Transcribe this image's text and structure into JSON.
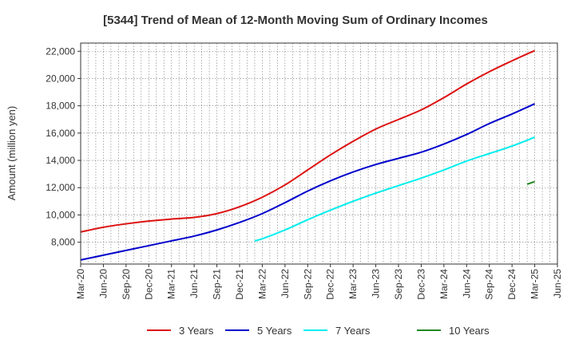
{
  "chart_data": {
    "type": "line",
    "title": "[5344]  Trend of Mean of 12-Month Moving Sum of Ordinary Incomes",
    "xlabel": "",
    "ylabel": "Amount (million yen)",
    "x_ticks": [
      "Mar-20",
      "Jun-20",
      "Sep-20",
      "Dec-20",
      "Mar-21",
      "Jun-21",
      "Sep-21",
      "Dec-21",
      "Mar-22",
      "Jun-22",
      "Sep-22",
      "Dec-22",
      "Mar-23",
      "Jun-23",
      "Sep-23",
      "Dec-23",
      "Mar-24",
      "Jun-24",
      "Sep-24",
      "Dec-24",
      "Mar-25",
      "Jun-25"
    ],
    "y_ticks": [
      8000,
      10000,
      12000,
      14000,
      16000,
      18000,
      20000,
      22000
    ],
    "y_tick_labels": [
      "8,000",
      "10,000",
      "12,000",
      "14,000",
      "16,000",
      "18,000",
      "20,000",
      "22,000"
    ],
    "ylim": [
      6400,
      22600
    ],
    "grid": true,
    "legend_position": "bottom",
    "series": [
      {
        "name": "3 Years",
        "color": "#dd1111",
        "x": [
          "Mar-20",
          "Jun-20",
          "Sep-20",
          "Dec-20",
          "Mar-21",
          "Jun-21",
          "Sep-21",
          "Dec-21",
          "Mar-22",
          "Jun-22",
          "Sep-22",
          "Dec-22",
          "Mar-23",
          "Jun-23",
          "Sep-23",
          "Dec-23",
          "Mar-24",
          "Jun-24",
          "Sep-24",
          "Dec-24",
          "Mar-25"
        ],
        "values": [
          8750,
          9100,
          9350,
          9550,
          9700,
          9820,
          10100,
          10600,
          11300,
          12200,
          13300,
          14400,
          15400,
          16300,
          17000,
          17700,
          18600,
          19600,
          20500,
          21300,
          22050
        ]
      },
      {
        "name": "5 Years",
        "color": "#0000cc",
        "x": [
          "Mar-20",
          "Jun-20",
          "Sep-20",
          "Dec-20",
          "Mar-21",
          "Jun-21",
          "Sep-21",
          "Dec-21",
          "Mar-22",
          "Jun-22",
          "Sep-22",
          "Dec-22",
          "Mar-23",
          "Jun-23",
          "Sep-23",
          "Dec-23",
          "Mar-24",
          "Jun-24",
          "Sep-24",
          "Dec-24",
          "Mar-25"
        ],
        "values": [
          6700,
          7050,
          7400,
          7750,
          8100,
          8450,
          8900,
          9450,
          10100,
          10900,
          11750,
          12500,
          13150,
          13700,
          14150,
          14600,
          15200,
          15900,
          16700,
          17400,
          18150
        ]
      },
      {
        "name": "7 Years",
        "color": "#00eeee",
        "x": [
          "Feb-22",
          "Mar-22",
          "Jun-22",
          "Sep-22",
          "Dec-22",
          "Mar-23",
          "Jun-23",
          "Sep-23",
          "Dec-23",
          "Mar-24",
          "Jun-24",
          "Sep-24",
          "Dec-24",
          "Mar-25"
        ],
        "values": [
          8100,
          8250,
          8900,
          9650,
          10350,
          11000,
          11600,
          12150,
          12700,
          13300,
          13950,
          14500,
          15050,
          15700
        ]
      },
      {
        "name": "10 Years",
        "color": "#228822",
        "x": [
          "Feb-25",
          "Mar-25"
        ],
        "values": [
          12250,
          12450
        ]
      }
    ]
  }
}
